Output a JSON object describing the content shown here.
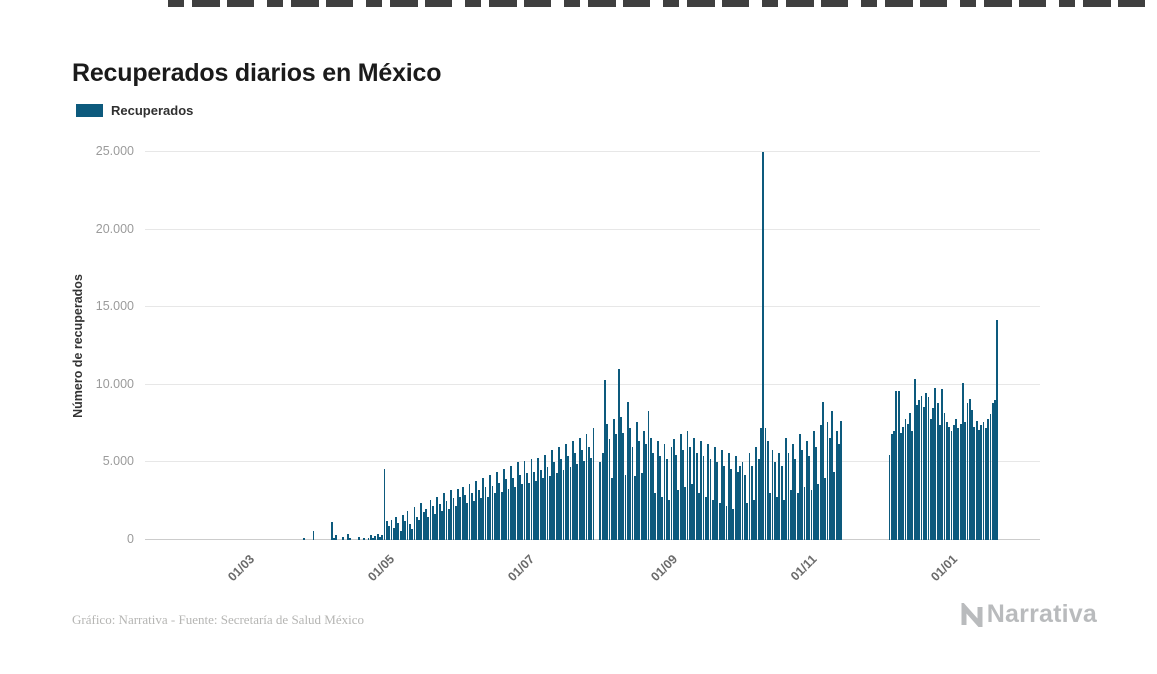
{
  "page": {
    "title": "Recuperados diarios en México"
  },
  "legend": {
    "label": "Recuperados",
    "swatch_color": "#0d5a7d"
  },
  "footer": {
    "credit": "Gráfico: Narrativa - Fuente: Secretaría de Salud México"
  },
  "logo": {
    "text": "Narrativa"
  },
  "chart_data": {
    "type": "bar",
    "title": "Recuperados diarios en México",
    "xlabel": "",
    "ylabel": "Número de recuperados",
    "ylim": [
      0,
      25000
    ],
    "grid": true,
    "legend_position": "top-left",
    "bar_color": "#0d5a7d",
    "y_ticks": [
      {
        "value": 0,
        "label": "0"
      },
      {
        "value": 5000,
        "label": "5.000"
      },
      {
        "value": 10000,
        "label": "10.000"
      },
      {
        "value": 15000,
        "label": "15.000"
      },
      {
        "value": 20000,
        "label": "20.000"
      },
      {
        "value": 25000,
        "label": "25.000"
      }
    ],
    "x_ticks": [
      {
        "label": "01/03",
        "offset_days": 46
      },
      {
        "label": "01/05",
        "offset_days": 107
      },
      {
        "label": "01/07",
        "offset_days": 168
      },
      {
        "label": "01/09",
        "offset_days": 230
      },
      {
        "label": "01/11",
        "offset_days": 291
      },
      {
        "label": "01/01",
        "offset_days": 352
      }
    ],
    "total_days": 390,
    "bars_start_offset_days": 67,
    "series": [
      {
        "name": "Recuperados",
        "values": [
          0,
          0,
          150,
          0,
          0,
          0,
          550,
          0,
          0,
          0,
          0,
          0,
          0,
          0,
          1150,
          100,
          350,
          0,
          0,
          200,
          0,
          400,
          150,
          0,
          0,
          0,
          200,
          0,
          100,
          0,
          150,
          300,
          100,
          250,
          400,
          200,
          350,
          4600,
          1250,
          900,
          1300,
          800,
          1500,
          1100,
          600,
          1600,
          1250,
          1900,
          1000,
          700,
          2100,
          1500,
          1300,
          2400,
          1800,
          2000,
          1500,
          2600,
          2200,
          1700,
          2800,
          2300,
          1900,
          3000,
          2500,
          2000,
          3200,
          2700,
          2200,
          3300,
          2800,
          3400,
          2900,
          2400,
          3600,
          3000,
          2500,
          3800,
          3200,
          2700,
          4000,
          3400,
          2800,
          4200,
          3500,
          3000,
          4400,
          3700,
          3100,
          4600,
          3900,
          3300,
          4800,
          4000,
          3400,
          5000,
          4200,
          3600,
          5100,
          4300,
          3700,
          5200,
          4400,
          3800,
          5300,
          4500,
          4000,
          5500,
          4700,
          4100,
          5800,
          5000,
          4300,
          6000,
          5200,
          4500,
          6200,
          5400,
          4700,
          6400,
          5600,
          4900,
          6600,
          5800,
          5100,
          6800,
          6000,
          5300,
          7200,
          0,
          0,
          5000,
          5600,
          10300,
          7500,
          6500,
          4000,
          7800,
          6800,
          11000,
          7900,
          6900,
          4200,
          8900,
          7200,
          6000,
          4100,
          7600,
          6400,
          4300,
          7000,
          6200,
          8300,
          6600,
          5600,
          3000,
          6400,
          5400,
          2800,
          6200,
          5200,
          2600,
          6000,
          6500,
          5500,
          3200,
          6800,
          5800,
          3400,
          7000,
          6000,
          3600,
          6600,
          5600,
          3000,
          6400,
          5400,
          2800,
          6200,
          5200,
          2600,
          6000,
          5000,
          2400,
          5800,
          4800,
          2200,
          5600,
          4600,
          2000,
          5400,
          4400,
          4800,
          5000,
          4200,
          2400,
          5600,
          4800,
          2600,
          6000,
          5200,
          7200,
          25000,
          7200,
          6400,
          3000,
          5800,
          5000,
          2800,
          5600,
          4800,
          2600,
          6600,
          5600,
          3200,
          6200,
          5200,
          3000,
          6800,
          5800,
          3400,
          6400,
          5400,
          3200,
          7000,
          6000,
          3600,
          7400,
          8900,
          4000,
          7600,
          6600,
          8300,
          4400,
          7000,
          6200,
          7700,
          null,
          null,
          null,
          null,
          null,
          null,
          null,
          null,
          null,
          null,
          null,
          null,
          null,
          null,
          null,
          null,
          null,
          null,
          null,
          null,
          5500,
          6800,
          7000,
          9600,
          9600,
          6900,
          7300,
          7800,
          7500,
          8200,
          7000,
          10400,
          8700,
          9000,
          9300,
          8600,
          9500,
          9200,
          7800,
          8500,
          9800,
          8800,
          7400,
          9700,
          8200,
          7600,
          7300,
          7000,
          7400,
          7800,
          7200,
          7500,
          10100,
          7600,
          8800,
          9100,
          8400,
          7300,
          7700,
          7100,
          7400,
          7600,
          7200,
          7800,
          8100,
          8800,
          9000,
          14200
        ]
      }
    ]
  }
}
